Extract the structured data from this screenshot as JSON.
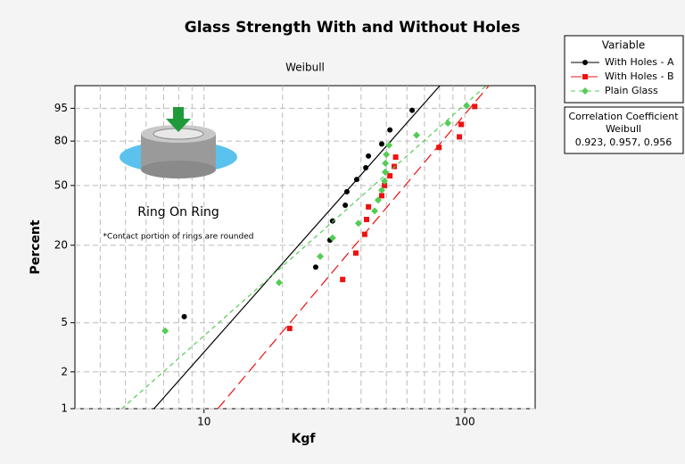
{
  "chart_data": {
    "type": "weibull-probability",
    "title": "Glass Strength With and Without Holes",
    "subtitle": "Weibull",
    "x_label": "Kgf",
    "y_label": "Percent",
    "x_log": true,
    "xlim": [
      3.2,
      186
    ],
    "xticks": [
      10,
      100
    ],
    "x_minor_grid": [
      4,
      5,
      6,
      7,
      8,
      9,
      20,
      30,
      40,
      50,
      60,
      70,
      80,
      90
    ],
    "ylim": [
      1,
      99
    ],
    "yticks": [
      1,
      2,
      5,
      20,
      50,
      80,
      95
    ],
    "grid": true,
    "legend_title": "Variable",
    "legend_position": "right",
    "stats_box": {
      "title": "Correlation Coefficient",
      "subtitle": "Weibull",
      "text": "0.923, 0.957, 0.956"
    },
    "illustration": {
      "caption": "Ring On Ring",
      "note": "*Contact portion of rings are rounded"
    },
    "series": [
      {
        "name": "With Holes - A",
        "color": "#000000",
        "marker": "circle",
        "line_style": "solid",
        "x": [
          8.4,
          26.8,
          30.4,
          31.1,
          34.8,
          35.3,
          38.5,
          41.7,
          42.7,
          48.0,
          51.6,
          62.8
        ],
        "values": [
          5.6,
          13.7,
          21.8,
          29.8,
          37.9,
          46.0,
          54.0,
          62.1,
          70.2,
          78.2,
          86.3,
          94.4
        ],
        "fit_x": [
          6.43,
          80.2
        ],
        "fit_y": [
          1,
          99
        ]
      },
      {
        "name": "With Holes - B",
        "color": "#ee1111",
        "marker": "square",
        "line_style": "long-dash",
        "x": [
          21.3,
          34.0,
          38.2,
          41.3,
          42.0,
          42.7,
          48.0,
          49.2,
          51.6,
          53.6,
          54.3,
          79.6,
          95.3,
          96.8,
          109.1
        ],
        "values": [
          4.5,
          11.0,
          17.5,
          24.0,
          30.5,
          37.0,
          43.5,
          50.0,
          56.5,
          63.0,
          69.5,
          76.0,
          82.5,
          89.0,
          95.5
        ],
        "fit_x": [
          11.3,
          123.6
        ],
        "fit_y": [
          1,
          99
        ]
      },
      {
        "name": "Plain Glass",
        "color": "#55cc55",
        "marker": "diamond",
        "line_style": "dash",
        "x": [
          7.1,
          19.4,
          27.9,
          31.1,
          39.1,
          45.1,
          46.5,
          48.0,
          49.2,
          49.5,
          49.6,
          50.0,
          51.2,
          65.3,
          86.1,
          101.6
        ],
        "values": [
          4.3,
          10.4,
          16.5,
          22.6,
          28.7,
          34.8,
          40.9,
          47.0,
          53.0,
          59.1,
          65.2,
          71.3,
          77.4,
          83.5,
          89.6,
          95.7
        ],
        "fit_x": [
          4.84,
          120.7
        ],
        "fit_y": [
          1,
          99
        ]
      }
    ]
  }
}
